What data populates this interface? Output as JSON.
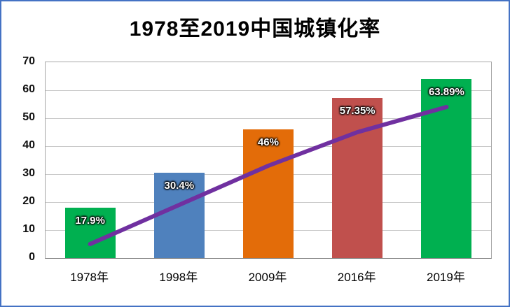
{
  "chart_data": {
    "type": "bar",
    "title": "1978至2019中国城镇化率",
    "categories": [
      "1978年",
      "1998年",
      "2009年",
      "2016年",
      "2019年"
    ],
    "series": [
      {
        "name": "bars",
        "type": "bar",
        "values": [
          17.9,
          30.4,
          46,
          57.35,
          63.89
        ],
        "data_labels": [
          "17.9%",
          "30.4%",
          "46%",
          "57.35%",
          "63.89%"
        ],
        "bar_colors": [
          "#00B050",
          "#4F81BD",
          "#E36C09",
          "#C0504D",
          "#00B050"
        ]
      },
      {
        "name": "line",
        "type": "line",
        "values": [
          5,
          19,
          33,
          45,
          54
        ],
        "color": "#7030A0"
      }
    ],
    "xlabel": "",
    "ylabel": "",
    "ylim": [
      0,
      70
    ],
    "yticks": [
      0,
      10,
      20,
      30,
      40,
      50,
      60,
      70
    ],
    "ytick_interval": 10,
    "grid": true,
    "legend": "none"
  },
  "style": {
    "frame_border_color": "#4472C4",
    "grid_color": "#C9C9C9",
    "axis_color": "#808080",
    "line_color": "#7030A0",
    "label_text_color": "#FFFFFF"
  }
}
